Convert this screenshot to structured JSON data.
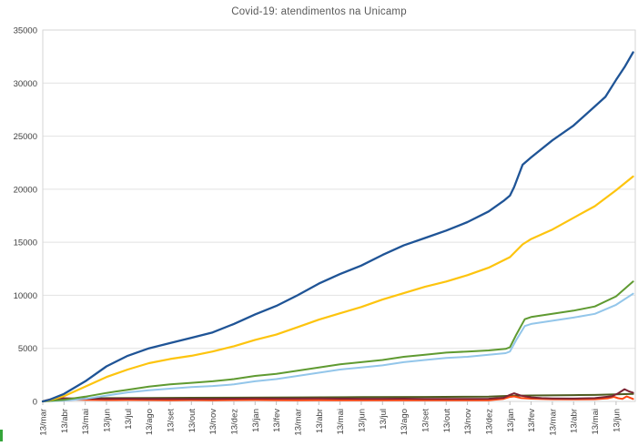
{
  "window": {
    "background_color": "#ffffff"
  },
  "chart_data": {
    "type": "line",
    "title": "Covid-19: atendimentos na Unicamp",
    "title_color": "#595959",
    "legend": "none",
    "grid": "horizontal gridlines every 5000, light gray",
    "ylim": [
      0,
      35000
    ],
    "y_tick_labels": [
      "0",
      "5000",
      "10000",
      "15000",
      "20000",
      "25000",
      "30000",
      "35000"
    ],
    "y_tick_values": [
      0,
      5000,
      10000,
      15000,
      20000,
      25000,
      30000,
      35000
    ],
    "x_tick_labels": [
      "13/mar",
      "13/abr",
      "13/mai",
      "13/jun",
      "13/jul",
      "13/ago",
      "13/set",
      "13/out",
      "13/nov",
      "13/dez",
      "13/jan",
      "13/fev",
      "13/mar",
      "13/abr",
      "13/mai",
      "13/jun",
      "13/jul",
      "13/ago",
      "13/set",
      "13/out",
      "13/nov",
      "13/dez",
      "13/jan",
      "13/fev",
      "13/mar",
      "13/abr",
      "13/mai",
      "13/jun"
    ],
    "x_unit": "month index from 13/mar/2020, monthly ticks, series data extends ~0.8 month past last tick",
    "axis_text_color": "#404040",
    "gridline_color": "#e2e2e2",
    "plot_border_color": "#d6d6d6",
    "series": [
      {
        "name": "dark-olive",
        "color": "#4e5b20",
        "width": 2,
        "points": [
          [
            0,
            0
          ],
          [
            0.5,
            120
          ],
          [
            1,
            200
          ],
          [
            2,
            280
          ],
          [
            3,
            310
          ],
          [
            5,
            330
          ],
          [
            7,
            340
          ],
          [
            9,
            350
          ],
          [
            12,
            380
          ],
          [
            15,
            400
          ],
          [
            18,
            420
          ],
          [
            21,
            450
          ],
          [
            22,
            520
          ],
          [
            23,
            560
          ],
          [
            25,
            590
          ],
          [
            26,
            610
          ],
          [
            27,
            660
          ],
          [
            27.8,
            700
          ]
        ]
      },
      {
        "name": "orange-red",
        "color": "#fe4612",
        "width": 2,
        "points": [
          [
            0,
            0
          ],
          [
            0.2,
            120
          ],
          [
            0.5,
            260
          ],
          [
            0.8,
            220
          ],
          [
            1,
            200
          ],
          [
            1.5,
            170
          ],
          [
            2,
            150
          ],
          [
            3,
            130
          ],
          [
            4,
            140
          ],
          [
            5,
            125
          ],
          [
            6,
            115
          ],
          [
            7,
            125
          ],
          [
            8,
            115
          ],
          [
            9,
            125
          ],
          [
            10,
            135
          ],
          [
            11,
            120
          ],
          [
            12,
            115
          ],
          [
            13,
            120
          ],
          [
            14,
            110
          ],
          [
            15,
            105
          ],
          [
            16,
            115
          ],
          [
            17,
            105
          ],
          [
            18,
            110
          ],
          [
            19,
            105
          ],
          [
            20,
            100
          ],
          [
            21,
            115
          ],
          [
            21.7,
            240
          ],
          [
            22,
            420
          ],
          [
            22.2,
            470
          ],
          [
            22.5,
            330
          ],
          [
            23,
            260
          ],
          [
            24,
            210
          ],
          [
            25,
            185
          ],
          [
            26,
            210
          ],
          [
            26.6,
            290
          ],
          [
            26.9,
            430
          ],
          [
            27.1,
            300
          ],
          [
            27.3,
            240
          ],
          [
            27.5,
            470
          ],
          [
            27.65,
            350
          ],
          [
            27.8,
            230
          ]
        ]
      },
      {
        "name": "maroon",
        "color": "#7c2434",
        "width": 2,
        "points": [
          [
            0,
            0
          ],
          [
            0.4,
            180
          ],
          [
            0.8,
            300
          ],
          [
            1.5,
            280
          ],
          [
            2,
            260
          ],
          [
            3,
            250
          ],
          [
            4,
            260
          ],
          [
            5,
            240
          ],
          [
            6,
            235
          ],
          [
            7,
            230
          ],
          [
            8,
            240
          ],
          [
            9,
            260
          ],
          [
            10,
            280
          ],
          [
            11,
            265
          ],
          [
            12,
            270
          ],
          [
            13,
            280
          ],
          [
            14,
            260
          ],
          [
            15,
            250
          ],
          [
            16,
            245
          ],
          [
            17,
            255
          ],
          [
            18,
            240
          ],
          [
            19,
            235
          ],
          [
            20,
            230
          ],
          [
            21,
            245
          ],
          [
            21.7,
            340
          ],
          [
            22,
            620
          ],
          [
            22.2,
            760
          ],
          [
            22.5,
            560
          ],
          [
            23,
            380
          ],
          [
            23.5,
            310
          ],
          [
            24,
            285
          ],
          [
            25,
            265
          ],
          [
            26,
            310
          ],
          [
            26.8,
            480
          ],
          [
            27.1,
            760
          ],
          [
            27.4,
            1150
          ],
          [
            27.6,
            950
          ],
          [
            27.8,
            820
          ]
        ]
      },
      {
        "name": "light-blue",
        "color": "#93c6ea",
        "width": 2,
        "points": [
          [
            0,
            0
          ],
          [
            1,
            80
          ],
          [
            2,
            250
          ],
          [
            3,
            550
          ],
          [
            4,
            850
          ],
          [
            5,
            1050
          ],
          [
            6,
            1200
          ],
          [
            7,
            1350
          ],
          [
            8,
            1450
          ],
          [
            9,
            1600
          ],
          [
            10,
            1900
          ],
          [
            11,
            2100
          ],
          [
            12,
            2400
          ],
          [
            13,
            2700
          ],
          [
            14,
            3000
          ],
          [
            15,
            3200
          ],
          [
            16,
            3400
          ],
          [
            17,
            3700
          ],
          [
            18,
            3900
          ],
          [
            19,
            4100
          ],
          [
            20,
            4200
          ],
          [
            21,
            4400
          ],
          [
            21.8,
            4550
          ],
          [
            22,
            4700
          ],
          [
            22.3,
            5800
          ],
          [
            22.7,
            7100
          ],
          [
            23,
            7300
          ],
          [
            24,
            7600
          ],
          [
            25,
            7900
          ],
          [
            26,
            8250
          ],
          [
            27,
            9100
          ],
          [
            27.8,
            10150
          ]
        ]
      },
      {
        "name": "green",
        "color": "#5f9a31",
        "width": 2,
        "points": [
          [
            0,
            0
          ],
          [
            1,
            150
          ],
          [
            2,
            450
          ],
          [
            3,
            800
          ],
          [
            4,
            1100
          ],
          [
            5,
            1400
          ],
          [
            6,
            1600
          ],
          [
            7,
            1750
          ],
          [
            8,
            1900
          ],
          [
            9,
            2100
          ],
          [
            10,
            2400
          ],
          [
            11,
            2600
          ],
          [
            12,
            2900
          ],
          [
            13,
            3200
          ],
          [
            14,
            3500
          ],
          [
            15,
            3700
          ],
          [
            16,
            3900
          ],
          [
            17,
            4200
          ],
          [
            18,
            4400
          ],
          [
            19,
            4600
          ],
          [
            20,
            4700
          ],
          [
            21,
            4800
          ],
          [
            21.8,
            4950
          ],
          [
            22,
            5100
          ],
          [
            22.3,
            6300
          ],
          [
            22.7,
            7750
          ],
          [
            23,
            7950
          ],
          [
            24,
            8250
          ],
          [
            25,
            8550
          ],
          [
            26,
            8950
          ],
          [
            27,
            9900
          ],
          [
            27.8,
            11300
          ]
        ]
      },
      {
        "name": "yellow",
        "color": "#fdc40e",
        "width": 2.2,
        "points": [
          [
            0,
            0
          ],
          [
            0.3,
            100
          ],
          [
            1,
            500
          ],
          [
            2,
            1400
          ],
          [
            3,
            2300
          ],
          [
            4,
            3000
          ],
          [
            5,
            3600
          ],
          [
            6,
            4000
          ],
          [
            7,
            4300
          ],
          [
            8,
            4700
          ],
          [
            9,
            5200
          ],
          [
            10,
            5800
          ],
          [
            11,
            6300
          ],
          [
            12,
            7000
          ],
          [
            13,
            7700
          ],
          [
            14,
            8300
          ],
          [
            15,
            8900
          ],
          [
            16,
            9600
          ],
          [
            17,
            10200
          ],
          [
            18,
            10800
          ],
          [
            19,
            11300
          ],
          [
            20,
            11900
          ],
          [
            21,
            12600
          ],
          [
            22,
            13600
          ],
          [
            22.6,
            14800
          ],
          [
            23,
            15300
          ],
          [
            24,
            16200
          ],
          [
            25,
            17300
          ],
          [
            26,
            18400
          ],
          [
            27,
            19900
          ],
          [
            27.8,
            21200
          ]
        ]
      },
      {
        "name": "dark-blue",
        "color": "#1f5496",
        "width": 2.3,
        "points": [
          [
            0,
            0
          ],
          [
            0.3,
            150
          ],
          [
            1,
            700
          ],
          [
            2,
            1900
          ],
          [
            3,
            3300
          ],
          [
            4,
            4300
          ],
          [
            5,
            5000
          ],
          [
            6,
            5500
          ],
          [
            7,
            6000
          ],
          [
            8,
            6500
          ],
          [
            9,
            7300
          ],
          [
            10,
            8200
          ],
          [
            11,
            9000
          ],
          [
            12,
            10000
          ],
          [
            13,
            11100
          ],
          [
            14,
            12000
          ],
          [
            15,
            12800
          ],
          [
            16,
            13800
          ],
          [
            17,
            14700
          ],
          [
            18,
            15400
          ],
          [
            19,
            16100
          ],
          [
            20,
            16900
          ],
          [
            21,
            17900
          ],
          [
            21.7,
            18900
          ],
          [
            22,
            19400
          ],
          [
            22.2,
            20200
          ],
          [
            22.6,
            22300
          ],
          [
            23,
            23000
          ],
          [
            24,
            24600
          ],
          [
            25,
            26000
          ],
          [
            26,
            27800
          ],
          [
            26.5,
            28700
          ],
          [
            27,
            30300
          ],
          [
            27.4,
            31500
          ],
          [
            27.8,
            32900
          ]
        ]
      }
    ]
  }
}
